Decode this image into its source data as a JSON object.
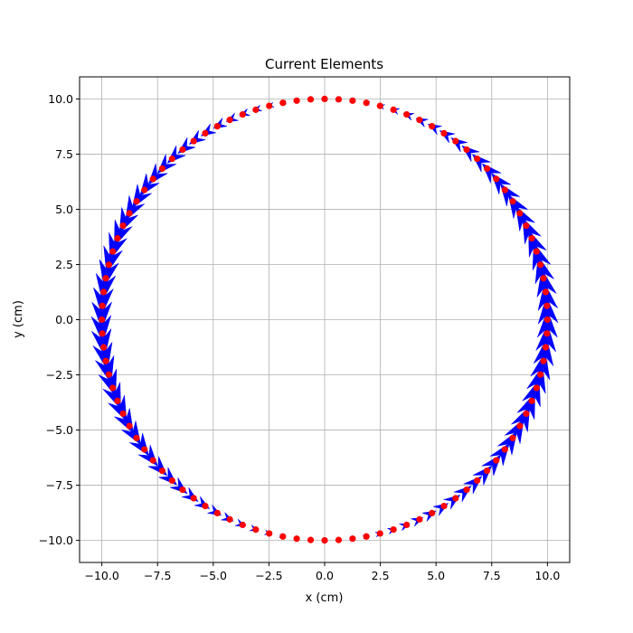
{
  "chart_data": {
    "type": "scatter",
    "title": "Current Elements",
    "xlabel": "x (cm)",
    "ylabel": "y (cm)",
    "xlim": [
      -11,
      11
    ],
    "ylim": [
      -11,
      11
    ],
    "xticks": [
      -10.0,
      -7.5,
      -5.0,
      -2.5,
      0.0,
      2.5,
      5.0,
      7.5,
      10.0
    ],
    "yticks": [
      -10.0,
      -7.5,
      -5.0,
      -2.5,
      0.0,
      2.5,
      5.0,
      7.5,
      10.0
    ],
    "xtick_labels": [
      "−10.0",
      "−7.5",
      "−5.0",
      "−2.5",
      "0.0",
      "2.5",
      "5.0",
      "7.5",
      "10.0"
    ],
    "ytick_labels": [
      "−10.0",
      "−7.5",
      "−5.0",
      "−2.5",
      "0.0",
      "2.5",
      "5.0",
      "7.5",
      "10.0"
    ],
    "grid": true,
    "circle": {
      "radius": 10,
      "center": [
        0,
        0
      ],
      "num_elements": 100
    },
    "series": [
      {
        "kind": "points",
        "color": "#ff0000"
      },
      {
        "kind": "current-arrows",
        "color": "#0000ff"
      }
    ]
  }
}
